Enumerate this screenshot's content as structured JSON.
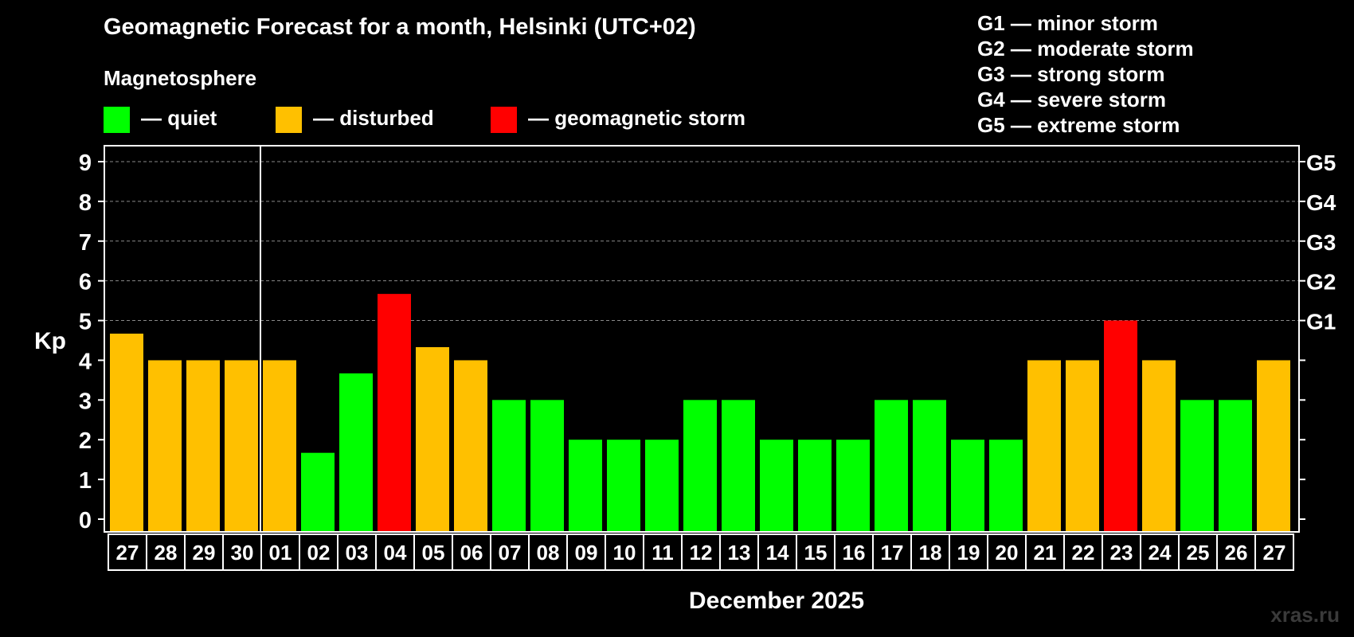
{
  "header": {
    "title": "Geomagnetic Forecast for a month, Helsinki (UTC+02)",
    "magnetosphere_label": "Magnetosphere"
  },
  "legend": {
    "items": [
      {
        "label": "— quiet",
        "color": "#00ff00"
      },
      {
        "label": "— disturbed",
        "color": "#ffc000"
      },
      {
        "label": "— geomagnetic storm",
        "color": "#ff0000"
      }
    ]
  },
  "storm_levels": [
    "G1 — minor storm",
    "G2 — moderate storm",
    "G3 — strong storm",
    "G4 — severe storm",
    "G5 — extreme storm"
  ],
  "watermark": "xras.ru",
  "chart_data": {
    "type": "bar",
    "title": "Geomagnetic Forecast for a month, Helsinki (UTC+02)",
    "xlabel": "December 2025",
    "ylabel": "Kp",
    "ylim": [
      0,
      9
    ],
    "yticks": [
      "0",
      "1",
      "2",
      "3",
      "4",
      "5",
      "6",
      "7",
      "8",
      "9"
    ],
    "right_axis_labels": [
      {
        "value": 5,
        "label": "G1"
      },
      {
        "value": 6,
        "label": "G2"
      },
      {
        "value": 7,
        "label": "G3"
      },
      {
        "value": 8,
        "label": "G4"
      },
      {
        "value": 9,
        "label": "G5"
      }
    ],
    "grid": "dashed horizontal lines from Kp 5 to 9",
    "month_separator_after_index": 3,
    "categories": [
      "27",
      "28",
      "29",
      "30",
      "01",
      "02",
      "03",
      "04",
      "05",
      "06",
      "07",
      "08",
      "09",
      "10",
      "11",
      "12",
      "13",
      "14",
      "15",
      "16",
      "17",
      "18",
      "19",
      "20",
      "21",
      "22",
      "23",
      "24",
      "25",
      "26",
      "27"
    ],
    "values": [
      4.67,
      4,
      4,
      4,
      4,
      1.67,
      3.67,
      5.67,
      4.33,
      4,
      3,
      3,
      2,
      2,
      2,
      3,
      3,
      2,
      2,
      2,
      3,
      3,
      2,
      2,
      4,
      4,
      5,
      4,
      3,
      3,
      4
    ],
    "status": [
      "disturbed",
      "disturbed",
      "disturbed",
      "disturbed",
      "disturbed",
      "quiet",
      "quiet",
      "storm",
      "disturbed",
      "disturbed",
      "quiet",
      "quiet",
      "quiet",
      "quiet",
      "quiet",
      "quiet",
      "quiet",
      "quiet",
      "quiet",
      "quiet",
      "quiet",
      "quiet",
      "quiet",
      "quiet",
      "disturbed",
      "disturbed",
      "storm",
      "disturbed",
      "quiet",
      "quiet",
      "disturbed"
    ],
    "status_colors": {
      "quiet": "#00ff00",
      "disturbed": "#ffc000",
      "storm": "#ff0000"
    }
  }
}
